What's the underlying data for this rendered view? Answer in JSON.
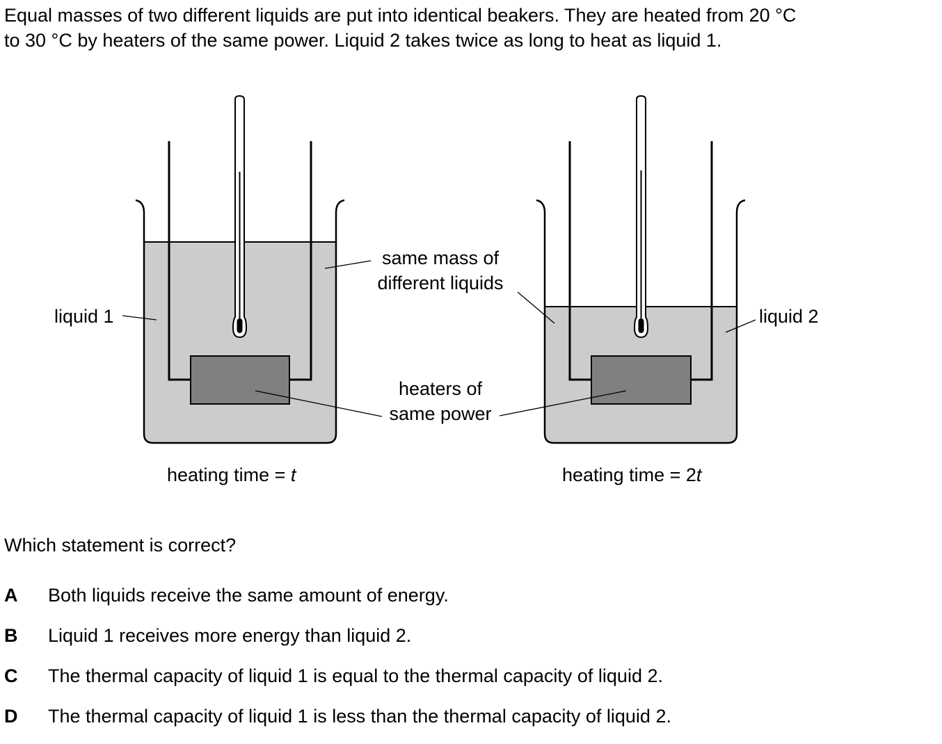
{
  "intro": {
    "line1": "Equal masses of two different liquids are put into identical beakers. They are heated from 20 °C",
    "line2": "to 30 °C by heaters of the same power. Liquid 2 takes twice as long to heat as liquid 1."
  },
  "diagram": {
    "colors": {
      "liquid": "#cccccc",
      "heater": "#808080",
      "outline": "#000000"
    },
    "label_liquid_1": "liquid 1",
    "label_liquid_2": "liquid 2",
    "label_same_mass_line1": "same mass of",
    "label_same_mass_line2": "different liquids",
    "label_heaters_line1": "heaters of",
    "label_heaters_line2": "same power",
    "caption_left_prefix": "heating time = ",
    "caption_left_var": "t",
    "caption_right_prefix": "heating time = 2",
    "caption_right_var": "t"
  },
  "question": "Which statement is correct?",
  "options": [
    {
      "letter": "A",
      "text": "Both liquids receive the same amount of energy."
    },
    {
      "letter": "B",
      "text": "Liquid 1 receives more energy than liquid 2."
    },
    {
      "letter": "C",
      "text": "The thermal capacity of liquid 1 is equal to the thermal capacity of liquid 2."
    },
    {
      "letter": "D",
      "text": "The thermal capacity of liquid 1 is less than the thermal capacity of liquid 2."
    }
  ]
}
